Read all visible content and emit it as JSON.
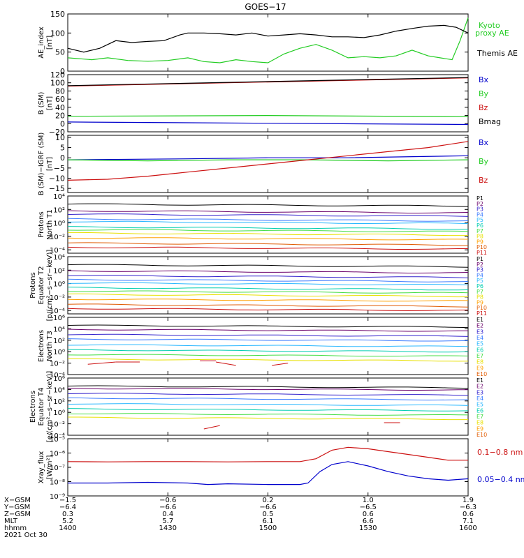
{
  "title": "GOES−17",
  "colors": {
    "black": "#000000",
    "green": "#22cc22",
    "blue": "#0000cc",
    "red": "#cc1111",
    "protons": [
      "#000000",
      "#6a006a",
      "#3322cc",
      "#3b7bff",
      "#2ab7ff",
      "#00cdb0",
      "#44dd44",
      "#e8e000",
      "#ffa000",
      "#e05a00",
      "#cc1111"
    ],
    "electrons": [
      "#000000",
      "#6a006a",
      "#3322cc",
      "#3b7bff",
      "#2ab7ff",
      "#00cdb0",
      "#44dd44",
      "#e8e000",
      "#ffa000",
      "#e05a00",
      "#cc1111"
    ]
  },
  "chart_data": [
    {
      "type": "line",
      "ylabel": [
        "AE_index",
        "[nT]"
      ],
      "ylim": [
        0,
        150
      ],
      "yticks": [
        "0",
        "50",
        "100",
        "150"
      ],
      "series": [
        {
          "name": "Kyoto proxy AE",
          "label": [
            "Kyoto",
            "proxy AE"
          ],
          "color": "#22cc22",
          "x": [
            0,
            0.06,
            0.1,
            0.15,
            0.2,
            0.25,
            0.3,
            0.34,
            0.38,
            0.42,
            0.46,
            0.5,
            0.54,
            0.58,
            0.62,
            0.66,
            0.7,
            0.74,
            0.78,
            0.82,
            0.86,
            0.9,
            0.93,
            0.96,
            0.98,
            1.0
          ],
          "y": [
            35,
            30,
            35,
            28,
            26,
            28,
            35,
            25,
            22,
            30,
            25,
            22,
            45,
            60,
            70,
            55,
            35,
            38,
            35,
            40,
            55,
            40,
            35,
            30,
            80,
            140
          ]
        },
        {
          "name": "Themis AE",
          "label": [
            "Themis AE"
          ],
          "color": "#000000",
          "x": [
            0,
            0.04,
            0.08,
            0.12,
            0.16,
            0.2,
            0.24,
            0.28,
            0.3,
            0.34,
            0.38,
            0.42,
            0.46,
            0.5,
            0.54,
            0.58,
            0.62,
            0.66,
            0.7,
            0.74,
            0.78,
            0.82,
            0.86,
            0.9,
            0.94,
            0.97,
            1.0
          ],
          "y": [
            60,
            50,
            60,
            80,
            75,
            78,
            80,
            95,
            100,
            100,
            98,
            95,
            100,
            92,
            95,
            98,
            95,
            90,
            90,
            88,
            95,
            105,
            112,
            118,
            120,
            115,
            100
          ]
        }
      ]
    },
    {
      "type": "line",
      "ylabel": [
        "B (SM)",
        "[nT]"
      ],
      "ylim": [
        -20,
        120
      ],
      "yticks": [
        "−20",
        "0",
        "20",
        "40",
        "60",
        "80",
        "100",
        "120"
      ],
      "series": [
        {
          "name": "Bx",
          "color": "#0000cc",
          "x": [
            0,
            1
          ],
          "y": [
            4,
            -2
          ]
        },
        {
          "name": "By",
          "color": "#22cc22",
          "x": [
            0,
            0.5,
            1
          ],
          "y": [
            18,
            20,
            17
          ]
        },
        {
          "name": "Bz",
          "color": "#cc1111",
          "x": [
            0,
            1
          ],
          "y": [
            92,
            112
          ]
        },
        {
          "name": "Bmag",
          "color": "#000000",
          "x": [
            0,
            1
          ],
          "y": [
            93,
            113
          ]
        }
      ]
    },
    {
      "type": "line",
      "ylabel": [
        "B (SM)−IGRF (SM)",
        "[nT]"
      ],
      "ylim": [
        -17,
        11
      ],
      "yticks": [
        "−15",
        "−10",
        "−5",
        "0",
        "5",
        "10"
      ],
      "series": [
        {
          "name": "Bx",
          "color": "#0000cc",
          "x": [
            0,
            0.3,
            0.5,
            0.7,
            1
          ],
          "y": [
            -1,
            -0.5,
            0,
            0,
            1
          ]
        },
        {
          "name": "By",
          "color": "#22cc22",
          "x": [
            0,
            0.2,
            0.4,
            0.6,
            0.8,
            1
          ],
          "y": [
            -1,
            -1.5,
            -1,
            -1,
            -1.5,
            -1
          ]
        },
        {
          "name": "Bz",
          "color": "#cc1111",
          "x": [
            0,
            0.1,
            0.2,
            0.3,
            0.4,
            0.5,
            0.6,
            0.7,
            0.8,
            0.9,
            1
          ],
          "y": [
            -11,
            -10.5,
            -9,
            -7,
            -5,
            -3,
            -1,
            1,
            3,
            5,
            8
          ]
        }
      ]
    },
    {
      "type": "line",
      "log": true,
      "ylabel": [
        "Protons",
        "North T1"
      ],
      "ylim": [
        -4.5,
        4
      ],
      "yticks": [
        [
          -4,
          "10⁻⁴"
        ],
        [
          -2,
          "10⁻²"
        ],
        [
          0,
          "10⁰"
        ],
        [
          2,
          "10²"
        ],
        [
          4,
          "10⁴"
        ]
      ],
      "channels": [
        "P1",
        "P2",
        "P3",
        "P4",
        "P5",
        "P6",
        "P7",
        "P8",
        "P9",
        "P10",
        "P11"
      ],
      "levels": [
        2.8,
        1.8,
        1.3,
        0.6,
        0.2,
        -0.6,
        -1.0,
        -1.5,
        -2.2,
        -3.0,
        -3.6
      ]
    },
    {
      "type": "line",
      "log": true,
      "ylabel": [
        "Protons",
        "Equator T2",
        "[p/(cm²−s−sr−keV)]"
      ],
      "ylim": [
        -4.5,
        4
      ],
      "yticks": [
        [
          -4,
          "10⁻⁴"
        ],
        [
          -2,
          "10⁻²"
        ],
        [
          0,
          "10⁰"
        ],
        [
          2,
          "10²"
        ],
        [
          4,
          "10⁴"
        ]
      ],
      "channels": [
        "P1",
        "P2",
        "P3",
        "P4",
        "P5",
        "P6",
        "P7",
        "P8",
        "P9",
        "P10",
        "P11"
      ],
      "levels": [
        2.8,
        1.9,
        1.2,
        0.6,
        0.1,
        -0.6,
        -1.1,
        -1.6,
        -2.3,
        -3.1,
        -3.7
      ]
    },
    {
      "type": "line",
      "log": true,
      "ylabel": [
        "Electrons",
        "North T3"
      ],
      "ylim": [
        -4,
        6
      ],
      "yticks": [
        [
          -4,
          "10⁻⁴"
        ],
        [
          -2,
          "10⁻²"
        ],
        [
          0,
          "10⁰"
        ],
        [
          2,
          "10²"
        ],
        [
          4,
          "10⁴"
        ],
        [
          6,
          "10⁶"
        ]
      ],
      "channels": [
        "E1",
        "E2",
        "E3",
        "E4",
        "E5",
        "E6",
        "E7",
        "E8",
        "E9",
        "E10"
      ],
      "levels": [
        4.6,
        3.9,
        3.0,
        2.2,
        1.2,
        0.3,
        -0.5,
        -1.3,
        null,
        null
      ],
      "fragments": [
        {
          "x": [
            0.05,
            0.12
          ],
          "y": [
            -2.2,
            -1.8
          ]
        },
        {
          "x": [
            0.12,
            0.18
          ],
          "y": [
            -1.8,
            -1.8
          ]
        },
        {
          "x": [
            0.33,
            0.37
          ],
          "y": [
            -1.6,
            -1.6
          ]
        },
        {
          "x": [
            0.37,
            0.42
          ],
          "y": [
            -1.8,
            -2.4
          ]
        },
        {
          "x": [
            0.51,
            0.55
          ],
          "y": [
            -2.4,
            -2.0
          ]
        }
      ]
    },
    {
      "type": "line",
      "log": true,
      "ylabel": [
        "Electrons",
        "Equator T4",
        "[e/(cm²−s−sr−keV)]"
      ],
      "ylim": [
        -4,
        6
      ],
      "yticks": [
        [
          -4,
          "10⁻⁴"
        ],
        [
          -2,
          "10⁻²"
        ],
        [
          0,
          "10⁰"
        ],
        [
          2,
          "10²"
        ],
        [
          4,
          "10⁴"
        ],
        [
          6,
          "10⁶"
        ]
      ],
      "channels": [
        "E1",
        "E2",
        "E3",
        "E4",
        "E5",
        "E6",
        "E7",
        "E8",
        "E9",
        "E10"
      ],
      "levels": [
        4.6,
        4.2,
        3.3,
        2.5,
        1.5,
        0.6,
        -0.2,
        -0.9,
        null,
        null
      ],
      "fragments": [
        {
          "x": [
            0.34,
            0.38
          ],
          "y": [
            -2.9,
            -2.3
          ]
        },
        {
          "x": [
            0.79,
            0.83
          ],
          "y": [
            -1.8,
            -1.8
          ]
        }
      ]
    },
    {
      "type": "line",
      "log": true,
      "ylabel": [
        "Xray_flux",
        "[W/m²]"
      ],
      "ylim": [
        -9,
        -5
      ],
      "yticks": [
        [
          -9,
          "10⁻⁹"
        ],
        [
          -8,
          "10⁻⁸"
        ],
        [
          -7,
          "10⁻⁷"
        ],
        [
          -6,
          "10⁻⁶"
        ],
        [
          -5,
          "10⁻⁵"
        ]
      ],
      "series": [
        {
          "name": "0.1−0.8 nm",
          "color": "#cc1111",
          "x": [
            0,
            0.1,
            0.2,
            0.3,
            0.4,
            0.5,
            0.58,
            0.62,
            0.66,
            0.7,
            0.75,
            0.8,
            0.85,
            0.9,
            0.95,
            1.0
          ],
          "y": [
            -6.6,
            -6.62,
            -6.6,
            -6.6,
            -6.62,
            -6.6,
            -6.6,
            -6.4,
            -5.8,
            -5.6,
            -5.7,
            -5.9,
            -6.1,
            -6.3,
            -6.5,
            -6.5
          ]
        },
        {
          "name": "0.05−0.4 nm",
          "color": "#0000cc",
          "x": [
            0,
            0.1,
            0.2,
            0.3,
            0.35,
            0.4,
            0.5,
            0.58,
            0.6,
            0.63,
            0.66,
            0.7,
            0.75,
            0.8,
            0.85,
            0.9,
            0.95,
            1.0
          ],
          "y": [
            -8.1,
            -8.1,
            -8.05,
            -8.1,
            -8.2,
            -8.15,
            -8.2,
            -8.2,
            -8.1,
            -7.3,
            -6.8,
            -6.6,
            -6.9,
            -7.3,
            -7.6,
            -7.8,
            -7.9,
            -7.8
          ]
        }
      ]
    }
  ],
  "xaxis": {
    "ticks": [
      0,
      0.25,
      0.5,
      0.75,
      1.0
    ],
    "rows": [
      {
        "label": "X−GSM",
        "values": [
          "−1.5",
          "−0.6",
          "0.2",
          "1.0",
          "1.9"
        ]
      },
      {
        "label": "Y−GSM",
        "values": [
          "−6.4",
          "−6.6",
          "−6.6",
          "−6.5",
          "−6.3"
        ]
      },
      {
        "label": "Z−GSM",
        "values": [
          "0.3",
          "0.4",
          "0.5",
          "0.6",
          "0.6"
        ]
      },
      {
        "label": "MLT",
        "values": [
          "5.2",
          "5.7",
          "6.1",
          "6.6",
          "7.1"
        ]
      },
      {
        "label": "hhmm",
        "values": [
          "1400",
          "1430",
          "1500",
          "1530",
          "1600"
        ]
      }
    ],
    "date": "2021 Oct 30"
  }
}
